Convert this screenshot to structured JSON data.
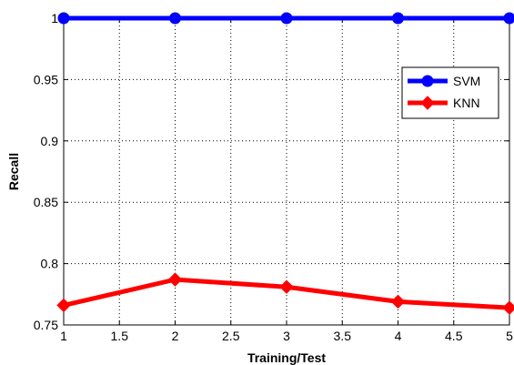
{
  "chart_data": {
    "type": "line",
    "title": "",
    "xlabel": "Training/Test",
    "ylabel": "Recall",
    "xlim": [
      1,
      5
    ],
    "ylim": [
      0.75,
      1.0
    ],
    "xticks": [
      1,
      1.5,
      2,
      2.5,
      3,
      3.5,
      4,
      4.5,
      5
    ],
    "yticks": [
      0.75,
      0.8,
      0.85,
      0.9,
      0.95,
      1
    ],
    "xtick_labels": [
      "1",
      "1.5",
      "2",
      "2.5",
      "3",
      "3.5",
      "4",
      "4.5",
      "5"
    ],
    "ytick_labels": [
      "0.75",
      "0.8",
      "0.85",
      "0.9",
      "0.95",
      "1"
    ],
    "grid": true,
    "legend_position": "top-right",
    "series": [
      {
        "name": "SVM",
        "color": "#0000ff",
        "marker": "circle",
        "x": [
          1,
          2,
          3,
          4,
          5
        ],
        "y": [
          1.0,
          1.0,
          1.0,
          1.0,
          1.0
        ]
      },
      {
        "name": "KNN",
        "color": "#ff0000",
        "marker": "diamond",
        "x": [
          1,
          2,
          3,
          4,
          5
        ],
        "y": [
          0.766,
          0.787,
          0.781,
          0.769,
          0.764
        ]
      }
    ]
  }
}
